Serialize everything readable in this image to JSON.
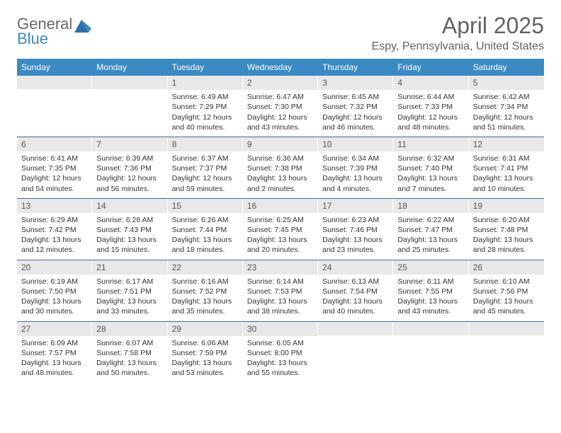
{
  "logo": {
    "top": "General",
    "bottom": "Blue"
  },
  "title": "April 2025",
  "subtitle": "Espy, Pennsylvania, United States",
  "colors": {
    "header_bg": "#3b8ac4",
    "header_text": "#ffffff",
    "daybar_bg": "#e8e8e8",
    "row_border": "#3b6ea0",
    "title_color": "#5f6368",
    "logo_gray": "#666a6e",
    "logo_blue": "#3b8ac4"
  },
  "weekdays": [
    "Sunday",
    "Monday",
    "Tuesday",
    "Wednesday",
    "Thursday",
    "Friday",
    "Saturday"
  ],
  "weeks": [
    [
      null,
      null,
      {
        "n": "1",
        "sr": "Sunrise: 6:49 AM",
        "ss": "Sunset: 7:29 PM",
        "dl": "Daylight: 12 hours and 40 minutes."
      },
      {
        "n": "2",
        "sr": "Sunrise: 6:47 AM",
        "ss": "Sunset: 7:30 PM",
        "dl": "Daylight: 12 hours and 43 minutes."
      },
      {
        "n": "3",
        "sr": "Sunrise: 6:45 AM",
        "ss": "Sunset: 7:32 PM",
        "dl": "Daylight: 12 hours and 46 minutes."
      },
      {
        "n": "4",
        "sr": "Sunrise: 6:44 AM",
        "ss": "Sunset: 7:33 PM",
        "dl": "Daylight: 12 hours and 48 minutes."
      },
      {
        "n": "5",
        "sr": "Sunrise: 6:42 AM",
        "ss": "Sunset: 7:34 PM",
        "dl": "Daylight: 12 hours and 51 minutes."
      }
    ],
    [
      {
        "n": "6",
        "sr": "Sunrise: 6:41 AM",
        "ss": "Sunset: 7:35 PM",
        "dl": "Daylight: 12 hours and 54 minutes."
      },
      {
        "n": "7",
        "sr": "Sunrise: 6:39 AM",
        "ss": "Sunset: 7:36 PM",
        "dl": "Daylight: 12 hours and 56 minutes."
      },
      {
        "n": "8",
        "sr": "Sunrise: 6:37 AM",
        "ss": "Sunset: 7:37 PM",
        "dl": "Daylight: 12 hours and 59 minutes."
      },
      {
        "n": "9",
        "sr": "Sunrise: 6:36 AM",
        "ss": "Sunset: 7:38 PM",
        "dl": "Daylight: 13 hours and 2 minutes."
      },
      {
        "n": "10",
        "sr": "Sunrise: 6:34 AM",
        "ss": "Sunset: 7:39 PM",
        "dl": "Daylight: 13 hours and 4 minutes."
      },
      {
        "n": "11",
        "sr": "Sunrise: 6:32 AM",
        "ss": "Sunset: 7:40 PM",
        "dl": "Daylight: 13 hours and 7 minutes."
      },
      {
        "n": "12",
        "sr": "Sunrise: 6:31 AM",
        "ss": "Sunset: 7:41 PM",
        "dl": "Daylight: 13 hours and 10 minutes."
      }
    ],
    [
      {
        "n": "13",
        "sr": "Sunrise: 6:29 AM",
        "ss": "Sunset: 7:42 PM",
        "dl": "Daylight: 13 hours and 12 minutes."
      },
      {
        "n": "14",
        "sr": "Sunrise: 6:28 AM",
        "ss": "Sunset: 7:43 PM",
        "dl": "Daylight: 13 hours and 15 minutes."
      },
      {
        "n": "15",
        "sr": "Sunrise: 6:26 AM",
        "ss": "Sunset: 7:44 PM",
        "dl": "Daylight: 13 hours and 18 minutes."
      },
      {
        "n": "16",
        "sr": "Sunrise: 6:25 AM",
        "ss": "Sunset: 7:45 PM",
        "dl": "Daylight: 13 hours and 20 minutes."
      },
      {
        "n": "17",
        "sr": "Sunrise: 6:23 AM",
        "ss": "Sunset: 7:46 PM",
        "dl": "Daylight: 13 hours and 23 minutes."
      },
      {
        "n": "18",
        "sr": "Sunrise: 6:22 AM",
        "ss": "Sunset: 7:47 PM",
        "dl": "Daylight: 13 hours and 25 minutes."
      },
      {
        "n": "19",
        "sr": "Sunrise: 6:20 AM",
        "ss": "Sunset: 7:48 PM",
        "dl": "Daylight: 13 hours and 28 minutes."
      }
    ],
    [
      {
        "n": "20",
        "sr": "Sunrise: 6:19 AM",
        "ss": "Sunset: 7:50 PM",
        "dl": "Daylight: 13 hours and 30 minutes."
      },
      {
        "n": "21",
        "sr": "Sunrise: 6:17 AM",
        "ss": "Sunset: 7:51 PM",
        "dl": "Daylight: 13 hours and 33 minutes."
      },
      {
        "n": "22",
        "sr": "Sunrise: 6:16 AM",
        "ss": "Sunset: 7:52 PM",
        "dl": "Daylight: 13 hours and 35 minutes."
      },
      {
        "n": "23",
        "sr": "Sunrise: 6:14 AM",
        "ss": "Sunset: 7:53 PM",
        "dl": "Daylight: 13 hours and 38 minutes."
      },
      {
        "n": "24",
        "sr": "Sunrise: 6:13 AM",
        "ss": "Sunset: 7:54 PM",
        "dl": "Daylight: 13 hours and 40 minutes."
      },
      {
        "n": "25",
        "sr": "Sunrise: 6:11 AM",
        "ss": "Sunset: 7:55 PM",
        "dl": "Daylight: 13 hours and 43 minutes."
      },
      {
        "n": "26",
        "sr": "Sunrise: 6:10 AM",
        "ss": "Sunset: 7:56 PM",
        "dl": "Daylight: 13 hours and 45 minutes."
      }
    ],
    [
      {
        "n": "27",
        "sr": "Sunrise: 6:09 AM",
        "ss": "Sunset: 7:57 PM",
        "dl": "Daylight: 13 hours and 48 minutes."
      },
      {
        "n": "28",
        "sr": "Sunrise: 6:07 AM",
        "ss": "Sunset: 7:58 PM",
        "dl": "Daylight: 13 hours and 50 minutes."
      },
      {
        "n": "29",
        "sr": "Sunrise: 6:06 AM",
        "ss": "Sunset: 7:59 PM",
        "dl": "Daylight: 13 hours and 53 minutes."
      },
      {
        "n": "30",
        "sr": "Sunrise: 6:05 AM",
        "ss": "Sunset: 8:00 PM",
        "dl": "Daylight: 13 hours and 55 minutes."
      },
      null,
      null,
      null
    ]
  ]
}
